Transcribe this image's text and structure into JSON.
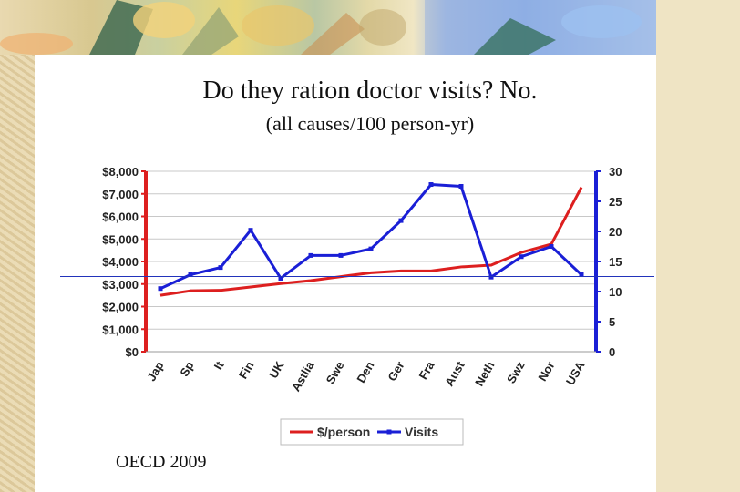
{
  "slide": {
    "title": "Do they ration doctor visits?  No.",
    "subtitle": "(all causes/100 person-yr)",
    "source": "OECD 2009"
  },
  "colors": {
    "left_series": "#dd1f1f",
    "right_series": "#1a1fd6",
    "grid": "#c8c8c8",
    "tick_text": "#222222"
  },
  "chart_data": {
    "type": "line",
    "categories": [
      "Jap",
      "Sp",
      "It",
      "Fin",
      "UK",
      "Astlia",
      "Swe",
      "Den",
      "Ger",
      "Fra",
      "Aust",
      "Neth",
      "Swz",
      "Nor",
      "USA"
    ],
    "series": [
      {
        "name": "$/person",
        "axis": "left",
        "values": [
          2500,
          2700,
          2720,
          2870,
          3020,
          3150,
          3330,
          3500,
          3580,
          3580,
          3760,
          3840,
          4400,
          4770,
          7290
        ]
      },
      {
        "name": "Visits",
        "axis": "right",
        "values": [
          10.5,
          12.8,
          14.0,
          20.2,
          12.2,
          16.0,
          16.0,
          17.1,
          21.8,
          27.8,
          27.5,
          12.4,
          15.8,
          17.5,
          12.8
        ]
      }
    ],
    "y_left": {
      "lim": [
        0,
        8000
      ],
      "ticks": [
        0,
        1000,
        2000,
        3000,
        4000,
        5000,
        6000,
        7000,
        8000
      ],
      "tick_labels": [
        "$0",
        "$1,000",
        "$2,000",
        "$3,000",
        "$4,000",
        "$5,000",
        "$6,000",
        "$7,000",
        "$8,000"
      ]
    },
    "y_right": {
      "lim": [
        0,
        30
      ],
      "ticks": [
        0,
        5,
        10,
        15,
        20,
        25,
        30
      ],
      "tick_labels": [
        "0",
        "5",
        "10",
        "15",
        "20",
        "25",
        "30"
      ]
    },
    "grid": true,
    "legend_position": "bottom"
  }
}
